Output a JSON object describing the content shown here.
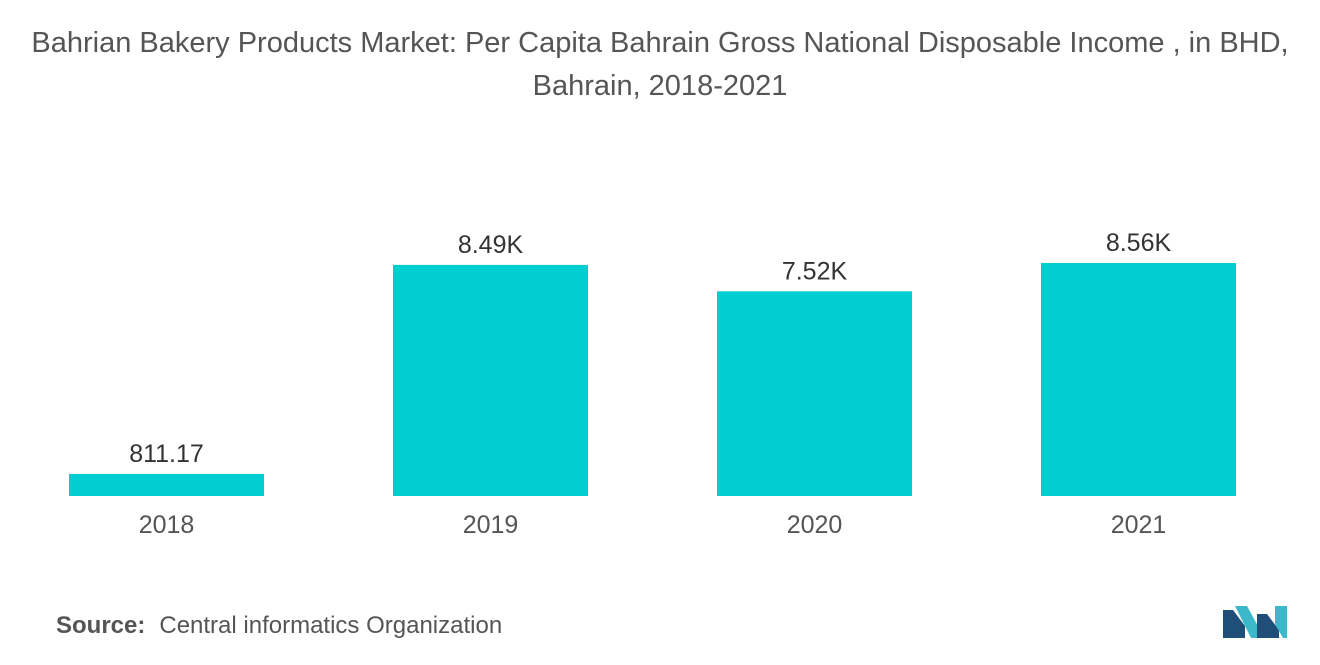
{
  "title": "Bahrian Bakery Products Market: Per Capita Bahrain Gross National Disposable Income , in BHD, Bahrain, 2018-2021",
  "source": {
    "label": "Source:",
    "text": "Central informatics Organization"
  },
  "colors": {
    "bar": "#00CED1",
    "text": "#555555",
    "logo_dark": "#1F4E79",
    "logo_light": "#3BB8C9"
  },
  "chart_data": {
    "type": "bar",
    "title": "Bahrian Bakery Products Market: Per Capita Bahrain Gross National Disposable Income , in BHD, Bahrain, 2018-2021",
    "categories": [
      "2018",
      "2019",
      "2020",
      "2021"
    ],
    "values": [
      811.17,
      8490,
      7520,
      8560
    ],
    "data_labels": [
      "811.17",
      "8.49K",
      "7.52K",
      "8.56K"
    ],
    "xlabel": "",
    "ylabel": "",
    "ylim": [
      0,
      8560
    ],
    "grid": false,
    "legend": "none"
  }
}
